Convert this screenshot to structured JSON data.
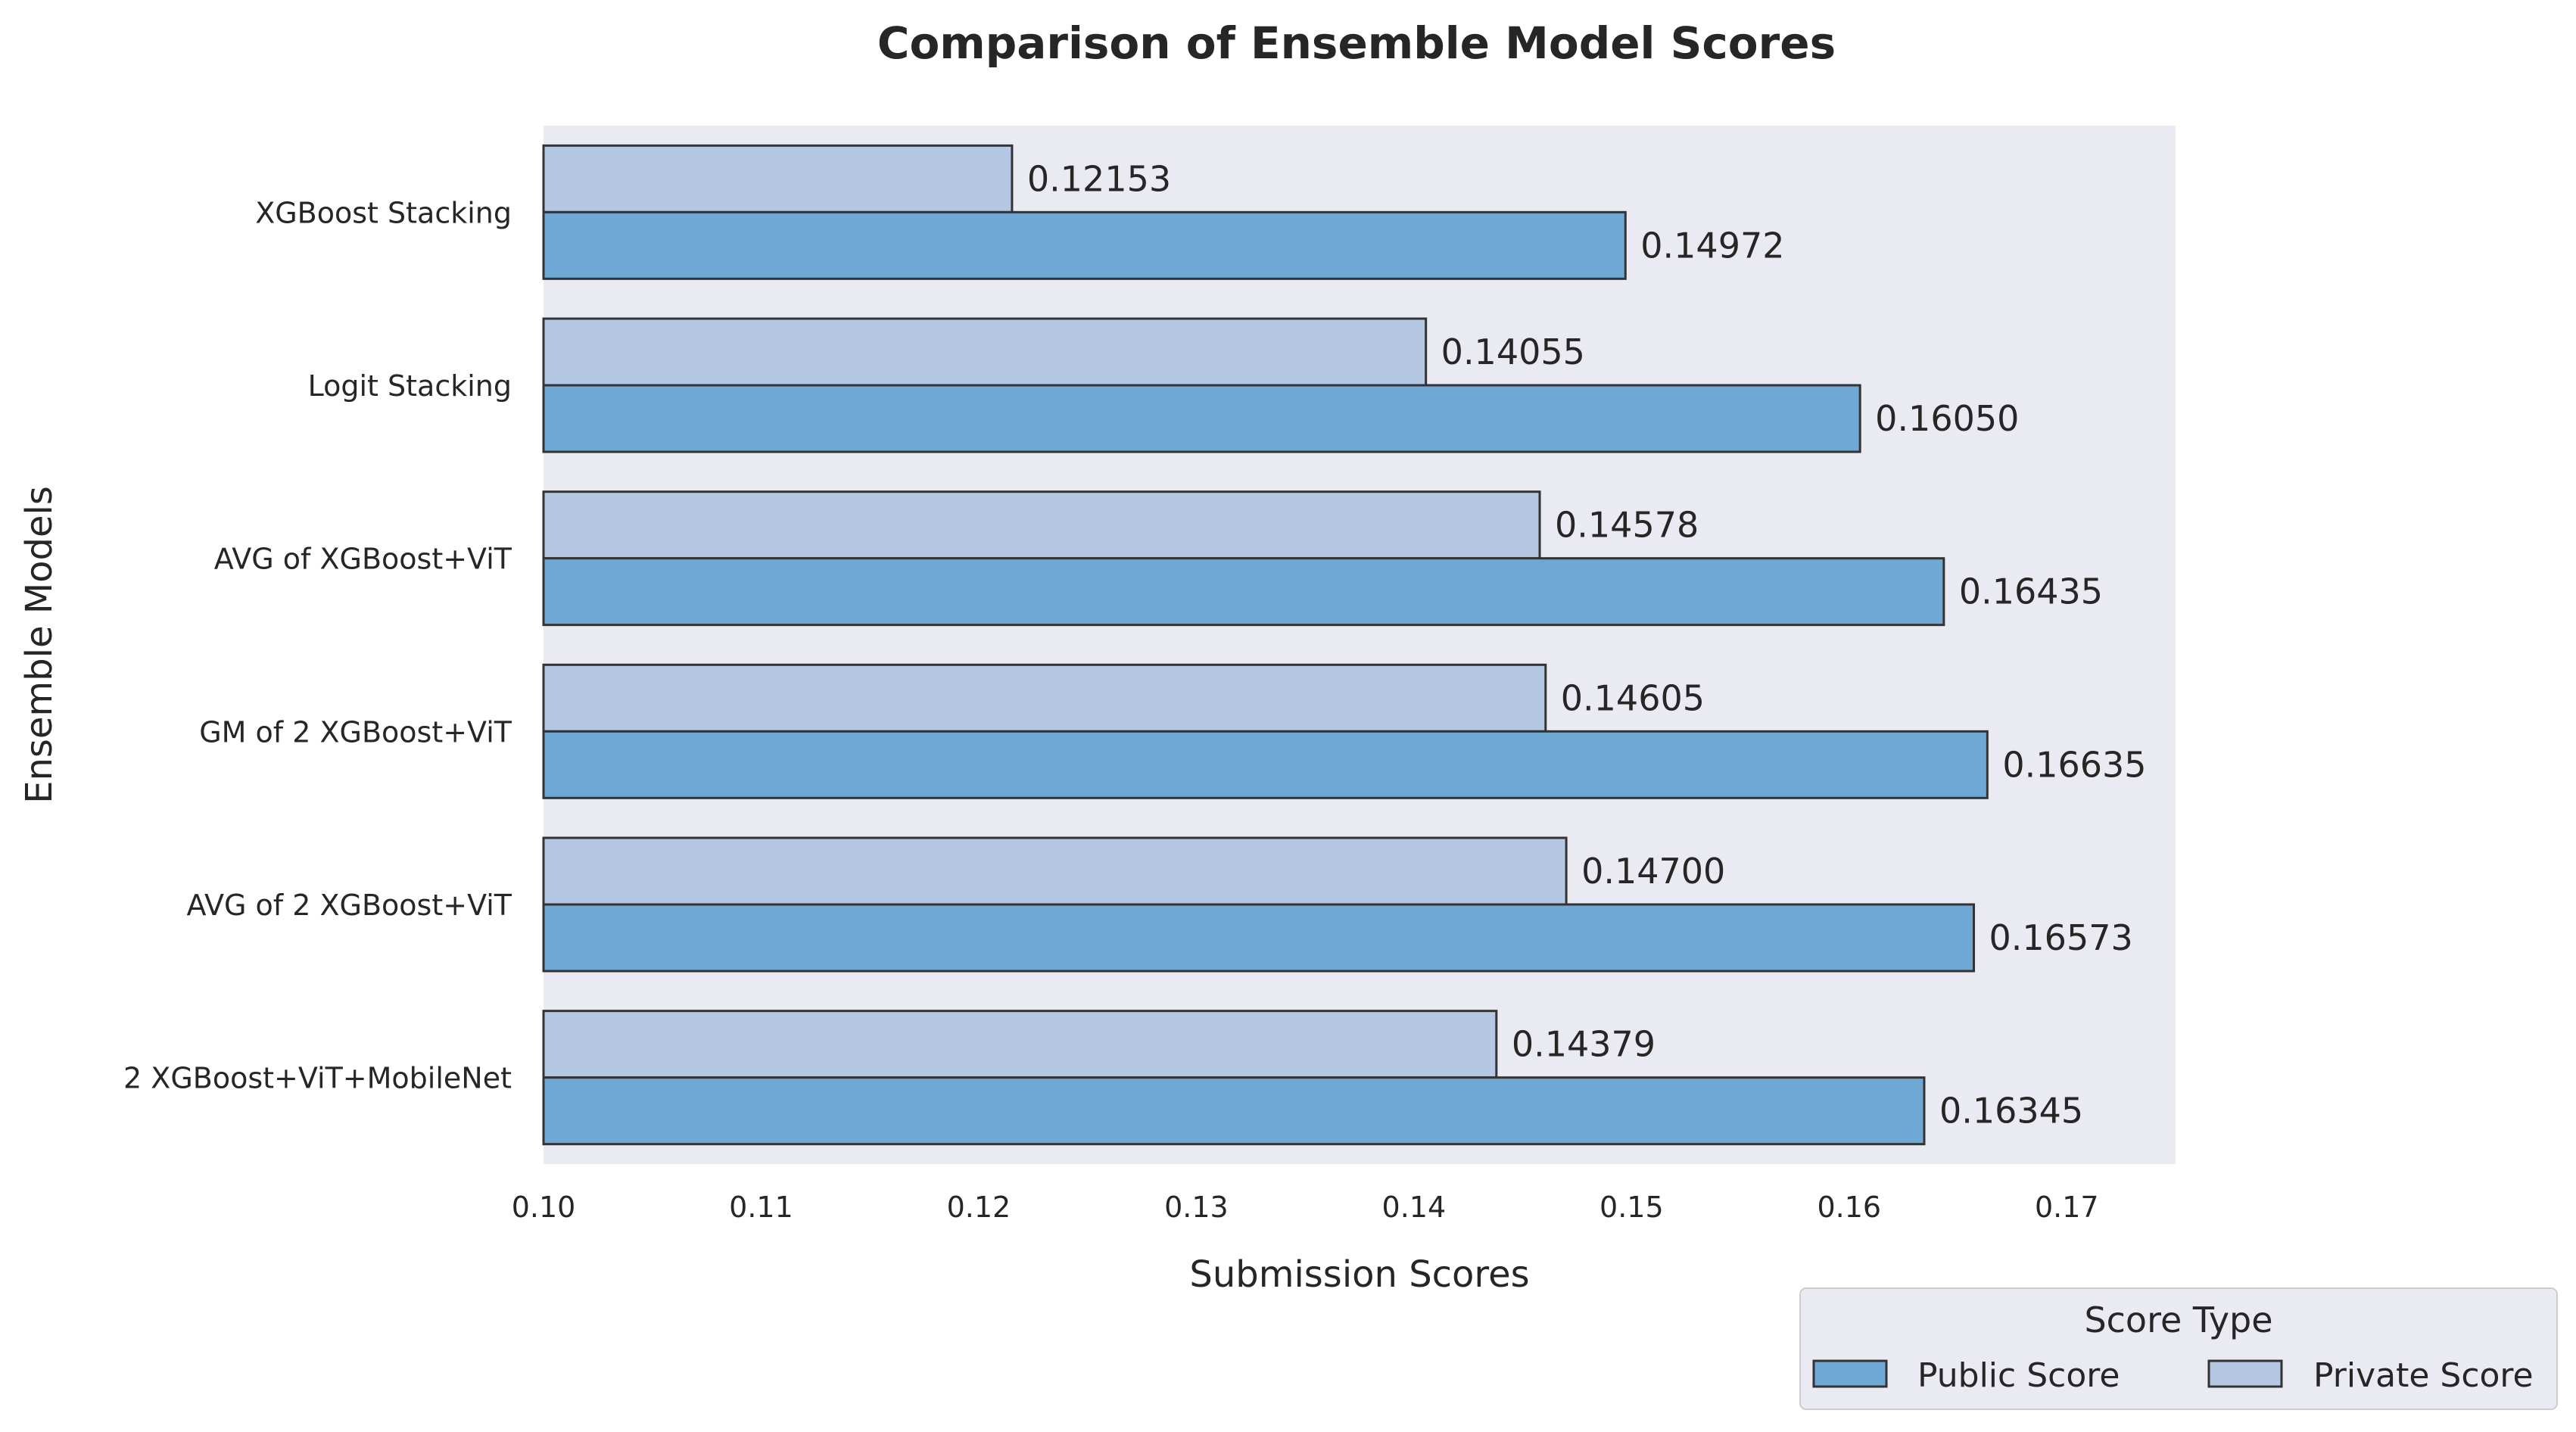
{
  "chart_data": {
    "type": "bar",
    "orientation": "horizontal",
    "title": "Comparison of Ensemble Model Scores",
    "xlabel": "Submission Scores",
    "ylabel": "Ensemble Models",
    "xlim": [
      0.1,
      0.175
    ],
    "xticks": [
      0.1,
      0.11,
      0.12,
      0.13,
      0.14,
      0.15,
      0.16,
      0.17
    ],
    "xtick_labels": [
      "0.10",
      "0.11",
      "0.12",
      "0.13",
      "0.14",
      "0.15",
      "0.16",
      "0.17"
    ],
    "grid": false,
    "categories": [
      "XGBoost Stacking",
      "Logit Stacking",
      "AVG of XGBoost+ViT",
      "GM of 2 XGBoost+ViT",
      "AVG of 2 XGBoost+ViT",
      "2 XGBoost+ViT+MobileNet"
    ],
    "series": [
      {
        "name": "Public Score",
        "color": "#6fa8d4",
        "values": [
          0.14972,
          0.1605,
          0.16435,
          0.16635,
          0.16573,
          0.16345
        ],
        "labels": [
          "0.14972",
          "0.16050",
          "0.16435",
          "0.16635",
          "0.16573",
          "0.16345"
        ]
      },
      {
        "name": "Private Score",
        "color": "#b4c7e3",
        "values": [
          0.12153,
          0.14055,
          0.14578,
          0.14605,
          0.147,
          0.14379
        ],
        "labels": [
          "0.12153",
          "0.14055",
          "0.14578",
          "0.14605",
          "0.14700",
          "0.14379"
        ]
      }
    ],
    "legend": {
      "title": "Score Type",
      "placement": "bottom-right, outside plot"
    },
    "plot_background": "#eaeaf2",
    "bar_edge_color": "#333333"
  }
}
